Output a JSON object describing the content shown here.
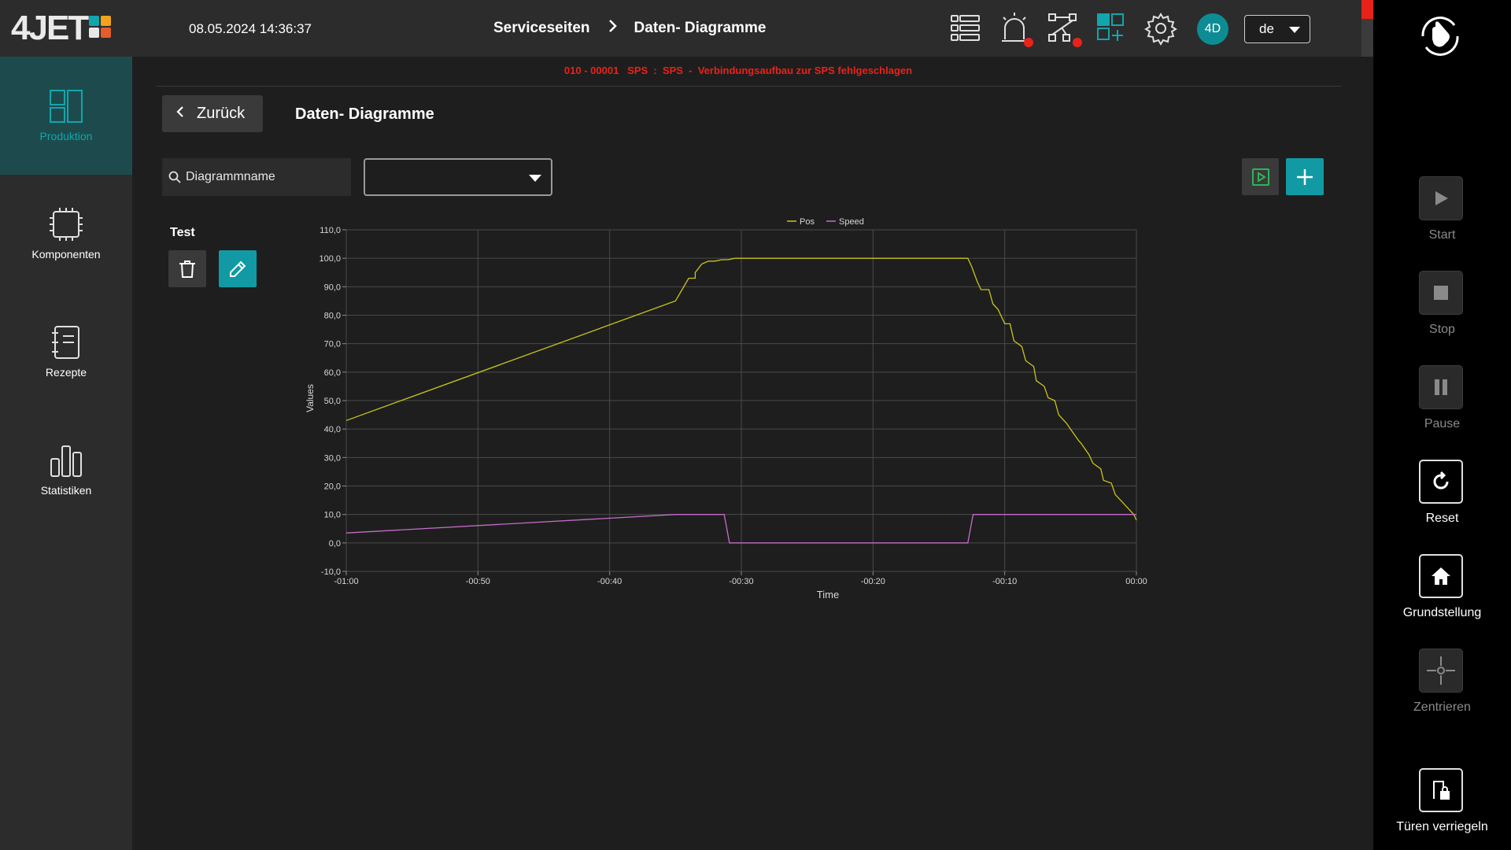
{
  "header": {
    "logo_text": "4JET",
    "logo_colors": [
      "#11a6ae",
      "#f2a31b",
      "#e8e8e8",
      "#e65d2a"
    ],
    "datetime": "08.05.2024 14:36:37",
    "breadcrumb": [
      "Serviceseiten",
      "Daten- Diagramme"
    ],
    "icons": [
      "list-view-icon",
      "alarm-light-icon",
      "network-icon",
      "modules-add-icon",
      "settings-gear-icon"
    ],
    "avatar": "4D",
    "language": "de",
    "alert_color": "#e8221b",
    "accent_color": "#119aa3"
  },
  "sidebar": {
    "items": [
      {
        "label": "Produktion",
        "icon": "production-layout-icon",
        "active": true
      },
      {
        "label": "Komponenten",
        "icon": "chip-icon",
        "active": false
      },
      {
        "label": "Rezepte",
        "icon": "recipe-notebook-icon",
        "active": false
      },
      {
        "label": "Statistiken",
        "icon": "bar-stats-icon",
        "active": false
      }
    ]
  },
  "error_message": "010 - 00001   SPS  :  SPS  -  Verbindungsaufbau zur SPS fehlgeschlagen",
  "page": {
    "back_label": "Zurück",
    "title": "Daten- Diagramme",
    "search_placeholder": "Diagrammname",
    "dropdown_value": "",
    "diagram_name": "Test"
  },
  "chart_data": {
    "type": "line",
    "title": "",
    "xlabel": "Time",
    "ylabel": "Values",
    "xlim": [
      -60,
      0
    ],
    "ylim": [
      -10,
      110
    ],
    "xticks": [
      "-01:00",
      "-00:50",
      "-00:40",
      "-00:30",
      "-00:20",
      "-00:10",
      "00:00"
    ],
    "yticks": [
      "-10,0",
      "0,0",
      "10,0",
      "20,0",
      "30,0",
      "40,0",
      "50,0",
      "60,0",
      "70,0",
      "80,0",
      "90,0",
      "100,0",
      "110,0"
    ],
    "grid": true,
    "legend_position": "top-center",
    "series": [
      {
        "name": "Pos",
        "color": "#c9c51b",
        "x": [
          -60,
          -35,
          -34.5,
          -34,
          -33.5,
          -33.5,
          -33,
          -32.5,
          -32,
          -31.5,
          -31,
          -30.5,
          -30,
          -12.8,
          -12.5,
          -12.1,
          -11.8,
          -11.2,
          -10.9,
          -10.5,
          -10.0,
          -9.6,
          -9.3,
          -8.7,
          -8.4,
          -7.8,
          -7.6,
          -7.0,
          -6.7,
          -6.2,
          -5.9,
          -5.3,
          -5.0,
          -4.4,
          -4.2,
          -3.6,
          -3.3,
          -2.7,
          -2.5,
          -1.9,
          -1.6,
          -1.0,
          -0.8,
          -0.2,
          0
        ],
        "y": [
          43,
          85,
          89,
          93,
          93,
          95,
          98,
          99,
          99,
          99.5,
          99.5,
          100,
          100,
          100,
          97,
          92,
          89,
          89,
          84,
          82,
          77,
          77,
          71,
          69,
          64,
          62,
          57,
          55,
          51,
          50,
          45,
          42,
          40,
          36,
          35,
          31,
          28,
          26,
          22,
          21,
          17,
          14,
          13,
          10,
          8
        ]
      },
      {
        "name": "Speed",
        "color": "#c56cc8",
        "x": [
          -60,
          -35,
          -31.3,
          -30.9,
          -12.8,
          -12.4,
          0
        ],
        "y": [
          3.5,
          10,
          10,
          0,
          0,
          10,
          10
        ]
      }
    ]
  },
  "right_panel": {
    "buttons": [
      {
        "label": "Start",
        "icon": "play-icon",
        "enabled": false
      },
      {
        "label": "Stop",
        "icon": "stop-icon",
        "enabled": false
      },
      {
        "label": "Pause",
        "icon": "pause-icon",
        "enabled": false
      },
      {
        "label": "Reset",
        "icon": "reset-icon",
        "enabled": true
      },
      {
        "label": "Grundstellung",
        "icon": "home-icon",
        "enabled": true
      },
      {
        "label": "Zentrieren",
        "icon": "center-crosshair-icon",
        "enabled": false
      },
      {
        "label": "Türen verriegeln",
        "icon": "door-lock-icon",
        "enabled": true
      }
    ]
  }
}
